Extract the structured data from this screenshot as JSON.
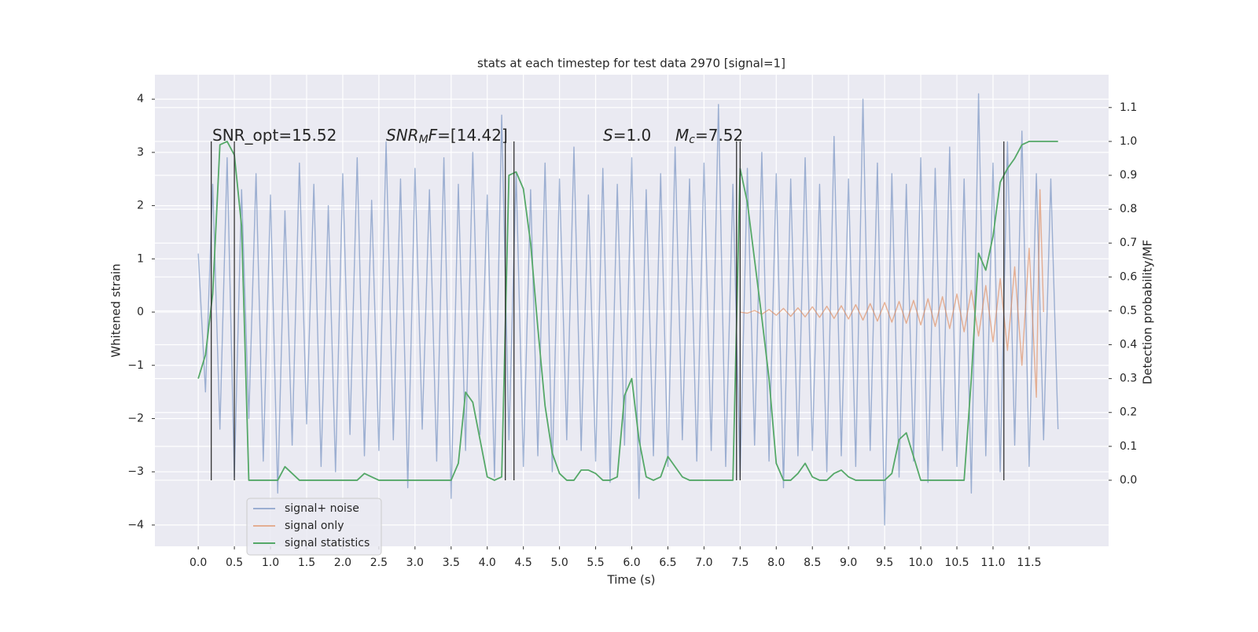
{
  "chart_data": {
    "type": "line",
    "title": "stats at each timestep for test data 2970 [signal=1]",
    "xlabel": "Time (s)",
    "ylabel": "Whitened strain",
    "y2label": "Detection probability/MF",
    "xlim": [
      -0.6,
      12.6
    ],
    "ylim": [
      -4.4,
      4.46
    ],
    "y2lim": [
      -0.195,
      1.197
    ],
    "grid": true,
    "legend": "lower left",
    "xticks": [
      {
        "value": 0,
        "label": "0.0"
      },
      {
        "value": 0.5,
        "label": "0.5"
      },
      {
        "value": 1,
        "label": "1.0"
      },
      {
        "value": 1.5,
        "label": "1.5"
      },
      {
        "value": 2,
        "label": "2.0"
      },
      {
        "value": 2.5,
        "label": "2.5"
      },
      {
        "value": 3,
        "label": "3.0"
      },
      {
        "value": 3.5,
        "label": "3.5"
      },
      {
        "value": 4,
        "label": "4.0"
      },
      {
        "value": 4.5,
        "label": "4.5"
      },
      {
        "value": 5,
        "label": "5.0"
      },
      {
        "value": 5.5,
        "label": "5.5"
      },
      {
        "value": 6,
        "label": "6.0"
      },
      {
        "value": 6.5,
        "label": "6.5"
      },
      {
        "value": 7,
        "label": "7.0"
      },
      {
        "value": 7.5,
        "label": "7.5"
      },
      {
        "value": 8,
        "label": "8.0"
      },
      {
        "value": 8.5,
        "label": "8.5"
      },
      {
        "value": 9,
        "label": "9.0"
      },
      {
        "value": 9.5,
        "label": "9.5"
      },
      {
        "value": 10,
        "label": "10.0"
      },
      {
        "value": 10.5,
        "label": "10.5"
      },
      {
        "value": 11,
        "label": "11.0"
      },
      {
        "value": 11.5,
        "label": "11.5"
      }
    ],
    "yticks": [
      {
        "value": -4,
        "label": "−4"
      },
      {
        "value": -3,
        "label": "−3"
      },
      {
        "value": -2,
        "label": "−2"
      },
      {
        "value": -1,
        "label": "−1"
      },
      0,
      1,
      2,
      3,
      4
    ],
    "y2ticks": [
      {
        "value": 0,
        "label": "0.0"
      },
      {
        "value": 0.1,
        "label": "0.1"
      },
      {
        "value": 0.2,
        "label": "0.2"
      },
      {
        "value": 0.3,
        "label": "0.3"
      },
      {
        "value": 0.4,
        "label": "0.4"
      },
      {
        "value": 0.5,
        "label": "0.5"
      },
      {
        "value": 0.6,
        "label": "0.6"
      },
      {
        "value": 0.7,
        "label": "0.7"
      },
      {
        "value": 0.8,
        "label": "0.8"
      },
      {
        "value": 0.9,
        "label": "0.9"
      },
      {
        "value": 1,
        "label": "1.0"
      },
      {
        "value": 1.1,
        "label": "1.1"
      }
    ],
    "x": [
      0.0,
      0.1,
      0.2,
      0.3,
      0.4,
      0.5,
      0.6,
      0.7,
      0.8,
      0.9,
      1.0,
      1.1,
      1.2,
      1.3,
      1.4,
      1.5,
      1.6,
      1.7,
      1.8,
      1.9,
      2.0,
      2.1,
      2.2,
      2.3,
      2.4,
      2.5,
      2.6,
      2.7,
      2.8,
      2.9,
      3.0,
      3.1,
      3.2,
      3.3,
      3.4,
      3.5,
      3.6,
      3.7,
      3.8,
      3.9,
      4.0,
      4.1,
      4.2,
      4.3,
      4.4,
      4.5,
      4.6,
      4.7,
      4.8,
      4.9,
      5.0,
      5.1,
      5.2,
      5.3,
      5.4,
      5.5,
      5.6,
      5.7,
      5.8,
      5.9,
      6.0,
      6.1,
      6.2,
      6.3,
      6.4,
      6.5,
      6.6,
      6.7,
      6.8,
      6.9,
      7.0,
      7.1,
      7.2,
      7.3,
      7.4,
      7.5,
      7.6,
      7.7,
      7.8,
      7.9,
      8.0,
      8.1,
      8.2,
      8.3,
      8.4,
      8.5,
      8.6,
      8.7,
      8.8,
      8.9,
      9.0,
      9.1,
      9.2,
      9.3,
      9.4,
      9.5,
      9.6,
      9.7,
      9.8,
      9.9,
      10.0,
      10.1,
      10.2,
      10.3,
      10.4,
      10.5,
      10.6,
      10.7,
      10.8,
      10.9,
      11.0,
      11.1,
      11.2,
      11.3,
      11.4,
      11.5,
      11.6,
      11.7,
      11.8,
      11.9
    ],
    "series": [
      {
        "name": "signal+ noise",
        "color": "#4c72b0",
        "opacity": 0.5,
        "values": [
          1.1,
          -1.5,
          2.4,
          -2.2,
          2.9,
          -3.1,
          2.3,
          -2.0,
          2.6,
          -2.8,
          2.2,
          -3.4,
          1.9,
          -2.5,
          2.8,
          -2.1,
          2.4,
          -2.9,
          2.0,
          -3.0,
          2.6,
          -2.3,
          2.9,
          -2.7,
          2.1,
          -2.6,
          3.2,
          -2.4,
          2.5,
          -3.3,
          2.7,
          -2.2,
          2.3,
          -2.8,
          2.9,
          -3.5,
          2.4,
          -2.6,
          3.0,
          -2.3,
          2.2,
          -3.1,
          3.7,
          -2.4,
          2.6,
          -2.9,
          2.3,
          -2.7,
          2.8,
          -3.0,
          2.5,
          -2.4,
          3.1,
          -2.6,
          2.2,
          -2.8,
          2.7,
          -3.2,
          2.4,
          -2.5,
          2.9,
          -3.5,
          2.3,
          -2.7,
          2.6,
          -2.9,
          3.1,
          -2.4,
          2.5,
          -2.8,
          2.8,
          -2.6,
          3.9,
          -2.9,
          2.4,
          -3.1,
          2.7,
          -2.5,
          3.0,
          -2.8,
          2.6,
          -3.3,
          2.5,
          -2.7,
          2.9,
          -2.6,
          2.4,
          -3.0,
          3.3,
          -2.7,
          2.5,
          -2.9,
          4.0,
          -2.6,
          2.8,
          -4.0,
          2.6,
          -3.1,
          2.4,
          -2.8,
          2.9,
          -3.2,
          2.7,
          -2.6,
          3.1,
          -2.9,
          2.5,
          -3.4,
          4.1,
          -2.7,
          2.8,
          -3.0,
          3.2,
          -2.5,
          3.4,
          -2.9,
          2.6,
          -2.4,
          2.5,
          -2.2
        ]
      },
      {
        "name": "signal only",
        "color": "#dd8452",
        "opacity": 0.6,
        "x": [
          7.5,
          7.6,
          7.7,
          7.8,
          7.9,
          8.0,
          8.1,
          8.2,
          8.3,
          8.4,
          8.5,
          8.6,
          8.7,
          8.8,
          8.9,
          9.0,
          9.1,
          9.2,
          9.3,
          9.4,
          9.5,
          9.6,
          9.7,
          9.8,
          9.9,
          10.0,
          10.1,
          10.2,
          10.3,
          10.4,
          10.5,
          10.6,
          10.7,
          10.8,
          10.9,
          11.0,
          11.1,
          11.2,
          11.3,
          11.4,
          11.5,
          11.6,
          11.65,
          11.7
        ],
        "values": [
          0.0,
          -0.02,
          0.03,
          -0.04,
          0.05,
          -0.06,
          0.07,
          -0.08,
          0.08,
          -0.09,
          0.1,
          -0.1,
          0.11,
          -0.12,
          0.12,
          -0.13,
          0.14,
          -0.15,
          0.16,
          -0.17,
          0.18,
          -0.19,
          0.2,
          -0.21,
          0.22,
          -0.24,
          0.25,
          -0.27,
          0.29,
          -0.31,
          0.34,
          -0.37,
          0.41,
          -0.45,
          0.5,
          -0.56,
          0.63,
          -0.72,
          0.85,
          -1.0,
          1.2,
          -1.6,
          2.3,
          0.0
        ]
      },
      {
        "name": "signal statistics",
        "color": "#55a868",
        "opacity": 1,
        "axis": "y2",
        "values": [
          0.3,
          0.37,
          0.55,
          0.99,
          1.0,
          0.96,
          0.75,
          0.0,
          0.0,
          0.0,
          0.0,
          0.0,
          0.04,
          0.02,
          0.0,
          0.0,
          0.0,
          0.0,
          0.0,
          0.0,
          0.0,
          0.0,
          0.0,
          0.02,
          0.01,
          0.0,
          0.0,
          0.0,
          0.0,
          0.0,
          0.0,
          0.0,
          0.0,
          0.0,
          0.0,
          0.0,
          0.05,
          0.26,
          0.23,
          0.12,
          0.01,
          0.0,
          0.01,
          0.9,
          0.91,
          0.86,
          0.7,
          0.45,
          0.22,
          0.08,
          0.02,
          0.0,
          0.0,
          0.03,
          0.03,
          0.02,
          0.0,
          0.0,
          0.01,
          0.25,
          0.3,
          0.12,
          0.01,
          0.0,
          0.01,
          0.07,
          0.04,
          0.01,
          0.0,
          0.0,
          0.0,
          0.0,
          0.0,
          0.0,
          0.0,
          0.92,
          0.82,
          0.65,
          0.48,
          0.3,
          0.05,
          0.0,
          0.0,
          0.02,
          0.05,
          0.01,
          0.0,
          0.0,
          0.02,
          0.03,
          0.01,
          0.0,
          0.0,
          0.0,
          0.0,
          0.0,
          0.02,
          0.12,
          0.14,
          0.07,
          0.0,
          0.0,
          0.0,
          0.0,
          0.0,
          0.0,
          0.0,
          0.3,
          0.67,
          0.62,
          0.72,
          0.88,
          0.92,
          0.95,
          0.99,
          1.0,
          1.0,
          1.0,
          1.0,
          1.0
        ]
      }
    ],
    "vlines": {
      "color": "#333333",
      "x": [
        0.18,
        0.5,
        4.25,
        4.37,
        7.45,
        7.5,
        11.15
      ],
      "y2range": [
        0,
        1
      ]
    },
    "annotations": [
      {
        "parts": [
          {
            "text": "SNR_opt=15.52"
          }
        ]
      },
      {
        "parts": [
          {
            "text": "SNR",
            "italic": true
          },
          {
            "text": "M",
            "italic": true,
            "sub": true
          },
          {
            "text": "F",
            "italic": true
          },
          {
            "text": "=[14.42]"
          }
        ]
      },
      {
        "parts": [
          {
            "text": "S",
            "italic": true
          },
          {
            "text": "=1.0"
          }
        ]
      },
      {
        "parts": [
          {
            "text": "M",
            "italic": true
          },
          {
            "text": "c",
            "italic": true,
            "sub": true
          },
          {
            "text": "=7.52"
          }
        ]
      }
    ]
  }
}
